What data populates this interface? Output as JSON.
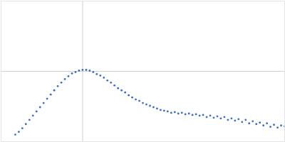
{
  "chart_data": {
    "type": "scatter",
    "color": "#3b6cc2",
    "marker": "circle",
    "grid": true,
    "tick_labels": false,
    "xlim": [
      0,
      4
    ],
    "ylim": [
      0,
      2
    ],
    "xticks": [
      1.15
    ],
    "yticks": [
      1
    ],
    "x": [
      0.2,
      0.25,
      0.3,
      0.35,
      0.4,
      0.45,
      0.5,
      0.55,
      0.6,
      0.65,
      0.7,
      0.75,
      0.8,
      0.85,
      0.9,
      0.95,
      1.0,
      1.05,
      1.1,
      1.15,
      1.2,
      1.25,
      1.3,
      1.35,
      1.4,
      1.45,
      1.5,
      1.55,
      1.6,
      1.65,
      1.7,
      1.75,
      1.8,
      1.85,
      1.9,
      1.95,
      2.0,
      2.05,
      2.1,
      2.15,
      2.2,
      2.25,
      2.3,
      2.35,
      2.4,
      2.45,
      2.5,
      2.55,
      2.6,
      2.65,
      2.7,
      2.75,
      2.8,
      2.85,
      2.9,
      2.95,
      3.0,
      3.05,
      3.1,
      3.15,
      3.2,
      3.25,
      3.3,
      3.35,
      3.4,
      3.45,
      3.5,
      3.55,
      3.6,
      3.65,
      3.7,
      3.75,
      3.8,
      3.85,
      3.9,
      3.95,
      4.0
    ],
    "values": [
      0.1,
      0.14,
      0.19,
      0.25,
      0.31,
      0.37,
      0.43,
      0.49,
      0.55,
      0.61,
      0.67,
      0.73,
      0.79,
      0.84,
      0.89,
      0.93,
      0.97,
      0.99,
      1.01,
      1.02,
      1.02,
      1.01,
      0.99,
      0.96,
      0.94,
      0.91,
      0.87,
      0.84,
      0.8,
      0.76,
      0.73,
      0.7,
      0.66,
      0.63,
      0.6,
      0.58,
      0.55,
      0.53,
      0.51,
      0.49,
      0.47,
      0.45,
      0.44,
      0.43,
      0.41,
      0.42,
      0.4,
      0.41,
      0.39,
      0.4,
      0.38,
      0.39,
      0.37,
      0.38,
      0.35,
      0.37,
      0.34,
      0.36,
      0.33,
      0.35,
      0.31,
      0.33,
      0.3,
      0.32,
      0.28,
      0.31,
      0.26,
      0.29,
      0.25,
      0.27,
      0.23,
      0.26,
      0.21,
      0.24,
      0.2,
      0.23,
      0.22
    ]
  }
}
